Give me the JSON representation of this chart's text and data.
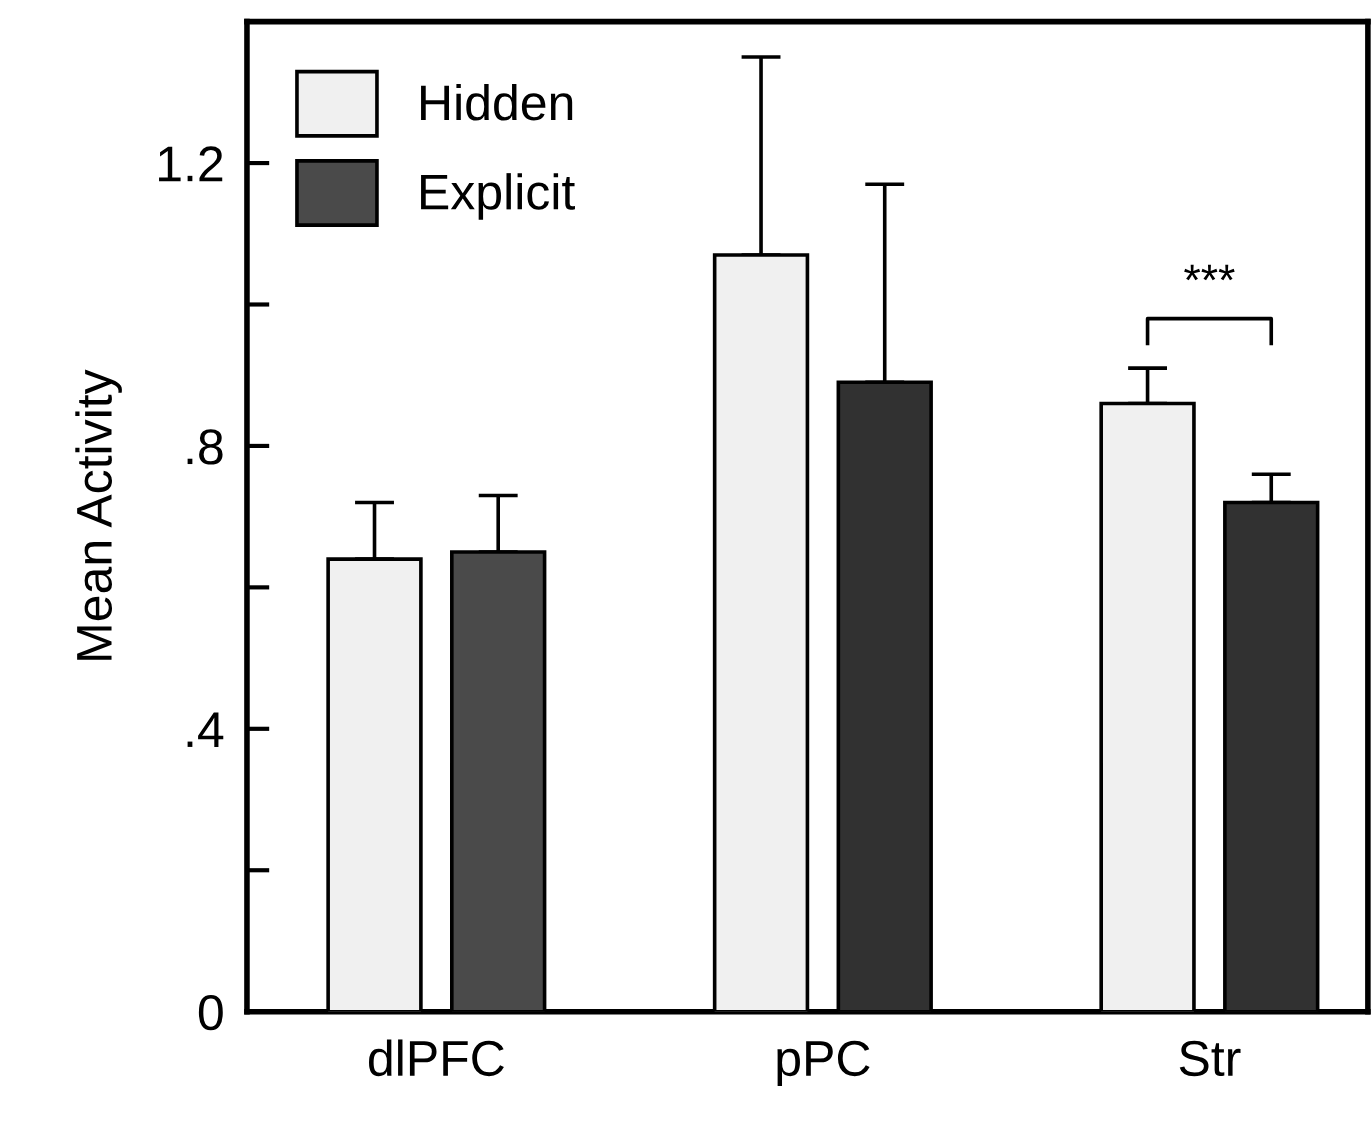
{
  "chart_data": {
    "type": "bar",
    "ylabel": "Mean Activity",
    "categories": [
      "dlPFC",
      "pPC",
      "Str"
    ],
    "series": [
      {
        "name": "Hidden",
        "color": "#f0f0f0",
        "values": [
          0.64,
          1.07,
          0.86
        ],
        "errors": [
          [
            0.64,
            0.72
          ],
          [
            1.07,
            1.35
          ],
          [
            0.86,
            0.91
          ]
        ]
      },
      {
        "name": "Explicit",
        "color": "#4a4a4a",
        "colors": [
          "#4a4a4a",
          "#313131",
          "#313131"
        ],
        "values": [
          0.65,
          0.89,
          0.72
        ],
        "errors": [
          [
            0.65,
            0.73
          ],
          [
            0.89,
            1.17
          ],
          [
            0.72,
            0.76
          ]
        ]
      }
    ],
    "ylim": [
      0,
      1.4
    ],
    "yticks": [
      0,
      {
        "value": 0.2,
        "label": null
      },
      {
        "value": 0.4,
        "label": ".4"
      },
      {
        "value": 0.6,
        "label": null
      },
      {
        "value": 0.8,
        "label": ".8"
      },
      {
        "value": 1.0,
        "label": null
      },
      1.2
    ],
    "annotations": [
      "***"
    ],
    "legend": "top left",
    "grid": false
  }
}
